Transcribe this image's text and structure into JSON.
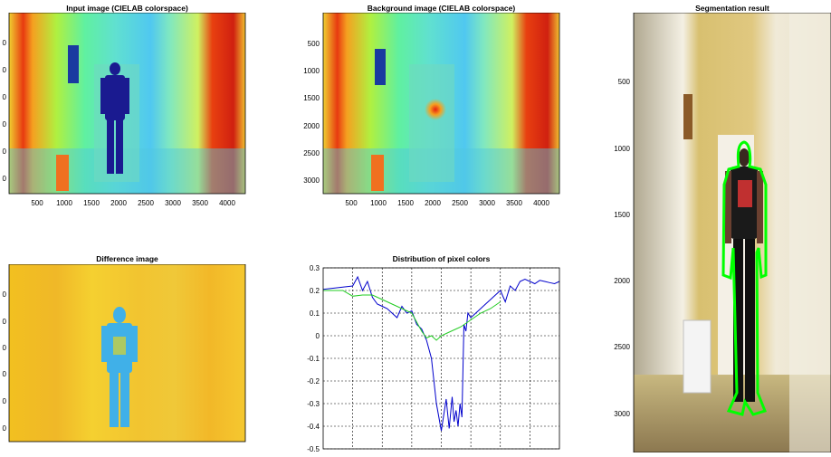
{
  "panels": {
    "input": {
      "title": "Input image (CIELAB colorspace)",
      "xticks": [
        "500",
        "1000",
        "1500",
        "2000",
        "2500",
        "3000",
        "3500",
        "4000"
      ],
      "yticks": [
        "0",
        "0",
        "0",
        "0",
        "0",
        "0"
      ]
    },
    "background": {
      "title": "Background image (CIELAB colorspace)",
      "xticks": [
        "500",
        "1000",
        "1500",
        "2000",
        "2500",
        "3000",
        "3500",
        "4000"
      ],
      "yticks": [
        "500",
        "1000",
        "1500",
        "2000",
        "2500",
        "3000"
      ]
    },
    "segmentation": {
      "title": "Segmentation result",
      "yticks": [
        "500",
        "1000",
        "1500",
        "2000",
        "2500",
        "3000"
      ]
    },
    "difference": {
      "title": "Difference image",
      "yticks": [
        "0",
        "0",
        "0",
        "0",
        "0",
        "0"
      ]
    }
  },
  "colors": {
    "series_blue": "#0000cc",
    "series_green": "#22cc22",
    "contour": "#00ff00"
  },
  "chart_data": {
    "type": "line",
    "title": "Distribution of pixel colors",
    "xlabel": "",
    "ylabel": "",
    "ylim": [
      -0.5,
      0.3
    ],
    "xlim": [
      0,
      240
    ],
    "yticks": [
      0.3,
      0.2,
      0.1,
      0,
      -0.1,
      -0.2,
      -0.3,
      -0.4,
      -0.5
    ],
    "ytick_labels": [
      "0.3",
      "0.2",
      "0.1",
      "0",
      "-0.1",
      "-0.2",
      "-0.3",
      "-0.4",
      "-0.5"
    ],
    "grid": true,
    "series": [
      {
        "color": "#0000cc",
        "x": [
          0,
          10,
          20,
          30,
          35,
          40,
          45,
          50,
          55,
          60,
          65,
          70,
          75,
          80,
          85,
          90,
          95,
          100,
          105,
          110,
          115,
          120,
          125,
          128,
          131,
          133,
          135,
          137,
          139,
          141,
          143,
          145,
          147,
          150,
          155,
          160,
          165,
          170,
          175,
          180,
          185,
          190,
          195,
          200,
          205,
          210,
          215,
          220,
          225,
          230,
          235,
          240
        ],
        "values": [
          0.205,
          0.21,
          0.215,
          0.22,
          0.26,
          0.2,
          0.24,
          0.17,
          0.14,
          0.13,
          0.12,
          0.1,
          0.08,
          0.13,
          0.1,
          0.11,
          0.05,
          0.03,
          -0.02,
          -0.1,
          -0.3,
          -0.42,
          -0.28,
          -0.41,
          -0.27,
          -0.38,
          -0.33,
          -0.4,
          -0.3,
          -0.36,
          0.05,
          0.02,
          0.1,
          0.08,
          0.1,
          0.12,
          0.14,
          0.16,
          0.18,
          0.2,
          0.15,
          0.22,
          0.2,
          0.24,
          0.25,
          0.24,
          0.23,
          0.245,
          0.24,
          0.235,
          0.23,
          0.24
        ]
      },
      {
        "color": "#22cc22",
        "x": [
          0,
          10,
          20,
          30,
          40,
          50,
          60,
          70,
          80,
          90,
          100,
          105,
          110,
          115,
          120,
          130,
          140,
          150,
          160,
          170,
          180
        ],
        "values": [
          0.2,
          0.2,
          0.2,
          0.175,
          0.18,
          0.18,
          0.16,
          0.14,
          0.12,
          0.1,
          0.02,
          -0.01,
          0.0,
          -0.02,
          0.0,
          0.02,
          0.04,
          0.07,
          0.1,
          0.12,
          0.15
        ]
      }
    ]
  }
}
